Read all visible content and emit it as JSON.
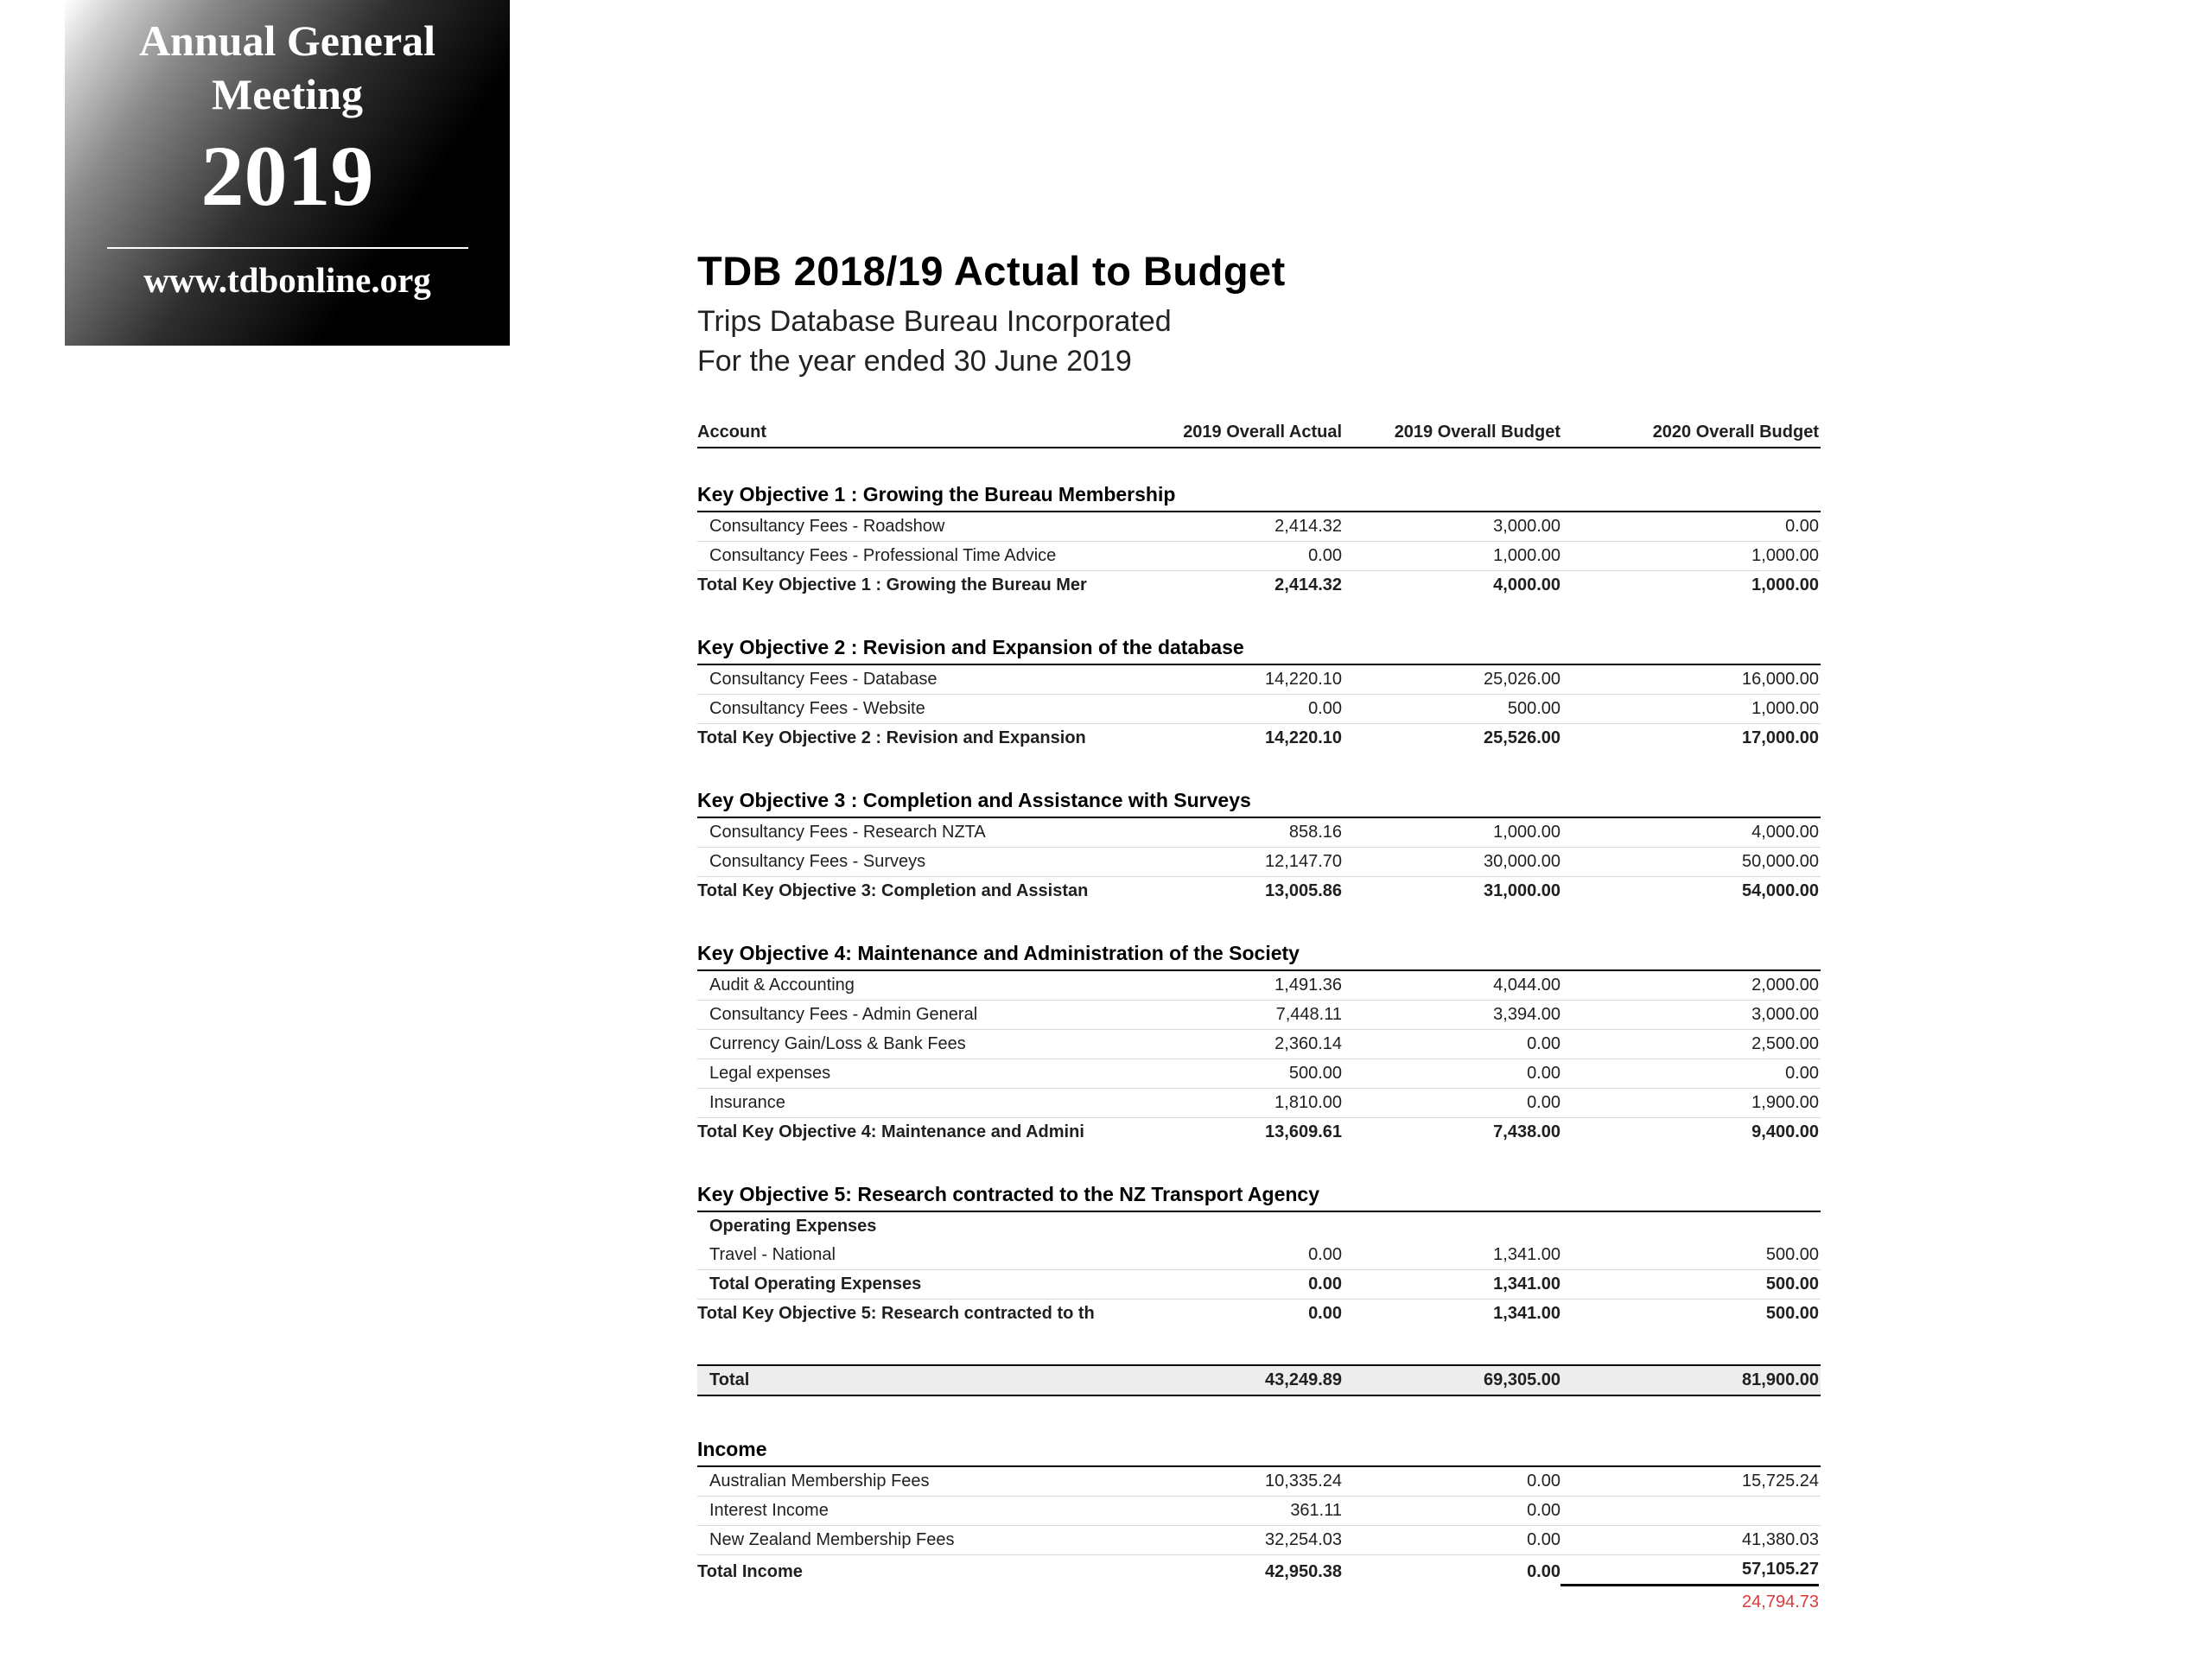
{
  "badge": {
    "line1": "Annual General",
    "line2": "Meeting",
    "year": "2019",
    "url": "www.tdbonline.org"
  },
  "colors": {
    "surplus_red": "#d93b3b",
    "badge_background": "#000000",
    "rule_light_gray": "#d9d9d9"
  },
  "report": {
    "title": "TDB 2018/19 Actual to Budget",
    "org": "Trips Database Bureau Incorporated",
    "period": "For the year ended 30 June 2019",
    "columns": [
      "Account",
      "2019 Overall Actual",
      "2019 Overall Budget",
      "2020 Overall Budget"
    ],
    "sections": [
      {
        "title": "Key Objective 1 : Growing the Bureau Membership",
        "rows": [
          {
            "label": "Consultancy Fees - Roadshow",
            "values": [
              "2,414.32",
              "3,000.00",
              "0.00"
            ],
            "style": "detail"
          },
          {
            "label": "Consultancy Fees - Professional Time Advice",
            "values": [
              "0.00",
              "1,000.00",
              "1,000.00"
            ],
            "style": "detail"
          }
        ],
        "total": {
          "label": "Total Key Objective 1 : Growing the Bureau Mer",
          "values": [
            "2,414.32",
            "4,000.00",
            "1,000.00"
          ]
        }
      },
      {
        "title": "Key Objective 2 : Revision and Expansion of the database",
        "rows": [
          {
            "label": "Consultancy Fees - Database",
            "values": [
              "14,220.10",
              "25,026.00",
              "16,000.00"
            ],
            "style": "detail"
          },
          {
            "label": "Consultancy Fees - Website",
            "values": [
              "0.00",
              "500.00",
              "1,000.00"
            ],
            "style": "detail"
          }
        ],
        "total": {
          "label": "Total Key Objective 2 : Revision and Expansion",
          "values": [
            "14,220.10",
            "25,526.00",
            "17,000.00"
          ]
        }
      },
      {
        "title": "Key Objective 3 : Completion and Assistance with Surveys",
        "rows": [
          {
            "label": "Consultancy Fees - Research NZTA",
            "values": [
              "858.16",
              "1,000.00",
              "4,000.00"
            ],
            "style": "detail"
          },
          {
            "label": "Consultancy Fees - Surveys",
            "values": [
              "12,147.70",
              "30,000.00",
              "50,000.00"
            ],
            "style": "detail"
          }
        ],
        "total": {
          "label": "Total Key Objective 3: Completion and Assistan",
          "values": [
            "13,005.86",
            "31,000.00",
            "54,000.00"
          ]
        }
      },
      {
        "title": "Key Objective 4: Maintenance and Administration of the Society",
        "rows": [
          {
            "label": "Audit & Accounting",
            "values": [
              "1,491.36",
              "4,044.00",
              "2,000.00"
            ],
            "style": "detail"
          },
          {
            "label": "Consultancy Fees - Admin General",
            "values": [
              "7,448.11",
              "3,394.00",
              "3,000.00"
            ],
            "style": "detail"
          },
          {
            "label": "Currency Gain/Loss & Bank Fees",
            "values": [
              "2,360.14",
              "0.00",
              "2,500.00"
            ],
            "style": "detail"
          },
          {
            "label": "Legal expenses",
            "values": [
              "500.00",
              "0.00",
              "0.00"
            ],
            "style": "detail"
          },
          {
            "label": "Insurance",
            "values": [
              "1,810.00",
              "0.00",
              "1,900.00"
            ],
            "style": "detail"
          }
        ],
        "total": {
          "label": "Total Key Objective 4: Maintenance and Admini",
          "values": [
            "13,609.61",
            "7,438.00",
            "9,400.00"
          ]
        }
      },
      {
        "title": "Key Objective 5: Research contracted to the NZ Transport Agency",
        "rows": [
          {
            "label": "Operating Expenses",
            "values": null,
            "style": "subhead"
          },
          {
            "label": "Travel - National",
            "values": [
              "0.00",
              "1,341.00",
              "500.00"
            ],
            "style": "detail"
          },
          {
            "label": "Total Operating Expenses",
            "values": [
              "0.00",
              "1,341.00",
              "500.00"
            ],
            "style": "subtotal"
          }
        ],
        "total": {
          "label": "Total Key Objective 5: Research contracted to th",
          "values": [
            "0.00",
            "1,341.00",
            "500.00"
          ]
        }
      }
    ],
    "grand_total": {
      "label": "Total",
      "values": [
        "43,249.89",
        "69,305.00",
        "81,900.00"
      ]
    },
    "income": {
      "title": "Income",
      "rows": [
        {
          "label": "Australian Membership Fees",
          "values": [
            "10,335.24",
            "0.00",
            "15,725.24"
          ],
          "style": "detail"
        },
        {
          "label": "Interest Income",
          "values": [
            "361.11",
            "0.00",
            ""
          ],
          "style": "detail"
        },
        {
          "label": "New Zealand Membership Fees",
          "values": [
            "32,254.03",
            "0.00",
            "41,380.03"
          ],
          "style": "detail"
        }
      ],
      "total": {
        "label": "Total Income",
        "values": [
          "42,950.38",
          "0.00",
          "57,105.27"
        ]
      },
      "surplus": "24,794.73"
    }
  }
}
